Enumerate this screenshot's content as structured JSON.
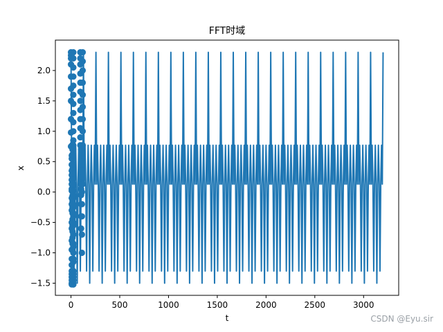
{
  "chart_data": {
    "type": "line",
    "title": "FFT时域",
    "xlabel": "t",
    "ylabel": "x",
    "xlim": [
      -160,
      3360
    ],
    "ylim": [
      -1.7,
      2.5
    ],
    "xticks": [
      0,
      500,
      1000,
      1500,
      2000,
      2500,
      3000
    ],
    "xtick_labels": [
      "0",
      "500",
      "1000",
      "1500",
      "2000",
      "2500",
      "3000"
    ],
    "yticks": [
      -1.5,
      -1.0,
      -0.5,
      0.0,
      0.5,
      1.0,
      1.5,
      2.0
    ],
    "ytick_labels": [
      "−1.5",
      "−1.0",
      "−0.5",
      "0.0",
      "0.5",
      "1.0",
      "1.5",
      "2.0"
    ],
    "grid": false,
    "line_color": "#1f77b4",
    "period": 128,
    "line_period_values": [
      2.3,
      0.13,
      0.77,
      0.13,
      -1.3,
      0.13,
      0.77,
      0.13,
      -1.5,
      0.13,
      0.77,
      0.13,
      -1.3,
      0.13,
      0.77,
      0.13
    ],
    "series": [
      {
        "style": "line",
        "x_start": 0,
        "x_end": 3200,
        "note": "periodic signal repeating line_period_values every period"
      },
      {
        "style": "markers",
        "x": [
          0,
          0,
          0,
          0,
          0,
          0,
          0,
          0,
          0,
          0,
          8,
          8,
          8,
          8,
          8,
          8,
          8,
          8,
          8,
          8,
          8,
          8,
          8,
          8,
          8,
          8,
          8,
          8,
          8,
          8,
          8,
          8,
          8,
          8,
          16,
          16,
          16,
          16,
          16,
          16,
          16,
          16,
          16,
          16,
          16,
          16,
          16,
          16,
          16,
          16,
          16,
          16,
          16,
          16,
          24,
          24,
          24,
          24,
          24,
          24,
          24,
          24,
          24,
          24,
          24,
          24,
          24,
          24,
          24,
          24,
          24,
          24,
          24,
          24,
          24,
          24,
          24,
          24,
          24,
          24,
          24,
          24,
          24,
          24,
          24,
          24,
          24,
          24,
          24,
          24,
          24,
          24,
          24,
          24,
          24,
          24,
          24,
          24,
          24,
          24,
          96,
          96,
          96,
          96,
          96,
          96,
          96,
          96,
          96,
          96,
          96,
          96,
          104,
          104,
          104,
          104,
          104,
          104,
          104,
          104,
          104,
          104,
          104,
          104,
          112,
          112,
          112,
          112,
          112,
          112,
          112,
          112,
          112,
          112,
          112,
          112,
          120,
          120,
          120,
          120,
          120,
          120,
          120,
          120,
          120,
          120,
          120,
          120
        ],
        "y": [
          2.3,
          2.25,
          2.2,
          2.1,
          1.9,
          1.7,
          1.5,
          1.2,
          0.98,
          0.75,
          0.6,
          0.55,
          0.45,
          0.35,
          0.28,
          0.2,
          0.13,
          0.05,
          0.02,
          -0.1,
          -0.2,
          -0.3,
          -0.5,
          -0.6,
          -0.8,
          -0.95,
          -1.1,
          -1.2,
          -1.3,
          -1.35,
          -1.4,
          -1.45,
          -1.5,
          -1.52,
          0.78,
          0.7,
          0.62,
          0.54,
          0.46,
          0.38,
          0.3,
          0.22,
          0.14,
          0.06,
          -0.06,
          -0.15,
          -0.25,
          -0.35,
          -0.45,
          -0.55,
          -0.65,
          -0.75,
          -0.85,
          -0.95,
          2.3,
          2.2,
          2.05,
          1.9,
          1.75,
          1.6,
          1.45,
          1.3,
          1.15,
          1.0,
          0.85,
          0.7,
          0.55,
          0.4,
          0.25,
          0.1,
          0.02,
          -0.1,
          -0.25,
          -0.4,
          -0.55,
          -0.7,
          -0.85,
          -1.0,
          -1.15,
          -1.3,
          -1.45,
          -1.52,
          0.77,
          0.6,
          0.45,
          0.3,
          0.13,
          -0.05,
          -0.2,
          -0.35,
          -0.5,
          -0.7,
          -0.9,
          -1.1,
          -1.3,
          -1.5,
          -1.52,
          -1.45,
          -1.4,
          -1.35,
          2.3,
          2.2,
          2.1,
          1.95,
          1.8,
          1.65,
          1.5,
          1.35,
          1.2,
          1.05,
          0.9,
          0.77,
          0.7,
          0.6,
          0.5,
          0.4,
          0.3,
          0.2,
          0.13,
          0.05,
          -0.05,
          -0.2,
          -0.4,
          -0.6,
          0.77,
          0.65,
          0.55,
          0.45,
          0.35,
          0.25,
          0.13,
          0.0,
          -0.2,
          -0.4,
          -0.7,
          -1.0,
          2.3,
          2.15,
          2.0,
          1.8,
          1.6,
          1.4,
          1.2,
          1.0,
          0.77,
          0.5,
          0.25,
          0.13
        ]
      }
    ]
  },
  "watermark": "CSDN @Eyu.sir"
}
